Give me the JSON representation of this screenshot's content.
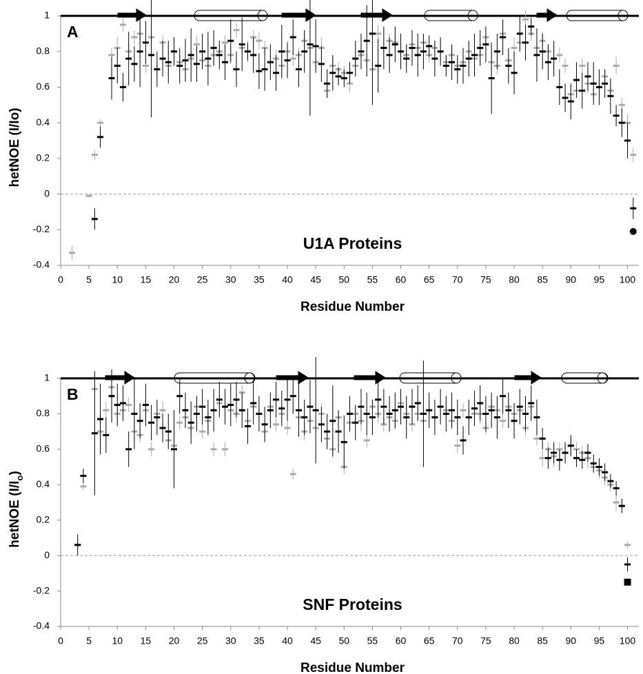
{
  "chart_data": [
    {
      "type": "scatter",
      "panel_label": "A",
      "annotation": "U1A Proteins",
      "xlabel": "Residue Number",
      "ylabel": "hetNOE  (I/Io)",
      "xlim": [
        0,
        102
      ],
      "ylim": [
        -0.4,
        1
      ],
      "xticks": [
        0,
        5,
        10,
        15,
        20,
        25,
        30,
        35,
        40,
        45,
        50,
        55,
        60,
        65,
        70,
        75,
        80,
        85,
        90,
        95,
        100
      ],
      "yticks": [
        -0.4,
        -0.2,
        0,
        0.2,
        0.4,
        0.6,
        0.8,
        1
      ],
      "zero_line": true,
      "x": [
        2,
        3,
        4,
        5,
        6,
        7,
        8,
        9,
        10,
        11,
        12,
        13,
        14,
        15,
        16,
        17,
        18,
        19,
        20,
        21,
        22,
        23,
        24,
        25,
        26,
        27,
        28,
        29,
        30,
        31,
        32,
        33,
        34,
        35,
        36,
        37,
        38,
        39,
        40,
        41,
        42,
        43,
        44,
        45,
        46,
        47,
        48,
        49,
        50,
        51,
        52,
        53,
        54,
        55,
        56,
        57,
        58,
        59,
        60,
        61,
        62,
        63,
        64,
        65,
        66,
        67,
        68,
        69,
        70,
        71,
        72,
        73,
        74,
        75,
        76,
        77,
        78,
        79,
        80,
        81,
        82,
        83,
        84,
        85,
        86,
        87,
        88,
        89,
        90,
        91,
        92,
        93,
        94,
        95,
        96,
        97,
        98,
        99,
        100,
        101
      ],
      "series": [
        {
          "color": "#aaaaaa",
          "values": [
            -0.33,
            null,
            null,
            -0.01,
            0.22,
            0.4,
            null,
            0.78,
            0.82,
            0.95,
            0.8,
            0.88,
            0.9,
            0.72,
            0.88,
            0.7,
            0.85,
            0.72,
            0.8,
            0.74,
            0.7,
            0.76,
            0.84,
            0.75,
            0.72,
            0.78,
            0.8,
            0.85,
            0.78,
            0.92,
            0.82,
            0.8,
            0.88,
            0.86,
            0.82,
            0.74,
            0.76,
            0.72,
            0.8,
            0.76,
            0.78,
            0.86,
            0.82,
            0.74,
            0.82,
            0.58,
            0.72,
            0.7,
            0.68,
            0.62,
            0.72,
            0.78,
            0.75,
            0.7,
            0.9,
            0.82,
            0.86,
            0.85,
            0.8,
            0.78,
            0.84,
            0.82,
            0.85,
            0.78,
            0.82,
            0.8,
            0.74,
            0.78,
            0.72,
            0.74,
            0.8,
            0.76,
            0.78,
            0.88,
            0.74,
            0.72,
            0.9,
            0.75,
            0.82,
            0.85,
            0.98,
            0.9,
            0.82,
            0.86,
            0.8,
            0.76,
            0.78,
            0.72,
            0.56,
            0.58,
            0.72,
            0.62,
            0.56,
            0.6,
            0.66,
            0.58,
            0.72,
            0.5,
            0.4,
            0.22
          ],
          "errors": [
            0.04,
            null,
            null,
            0.01,
            0.03,
            0.02,
            null,
            0.04,
            0.06,
            0.04,
            0.05,
            0.04,
            0.06,
            0.04,
            0.05,
            0.04,
            0.04,
            0.05,
            0.04,
            0.04,
            0.06,
            0.04,
            0.05,
            0.04,
            0.04,
            0.06,
            0.04,
            0.04,
            0.05,
            0.04,
            0.04,
            0.06,
            0.04,
            0.05,
            0.04,
            0.04,
            0.05,
            0.04,
            0.06,
            0.04,
            0.04,
            0.05,
            0.04,
            0.04,
            0.06,
            0.04,
            0.05,
            0.04,
            0.04,
            0.05,
            0.04,
            0.06,
            0.04,
            0.04,
            0.05,
            0.04,
            0.04,
            0.05,
            0.04,
            0.06,
            0.04,
            0.04,
            0.05,
            0.04,
            0.04,
            0.06,
            0.04,
            0.05,
            0.04,
            0.04,
            0.05,
            0.04,
            0.06,
            0.04,
            0.04,
            0.05,
            0.04,
            0.04,
            0.06,
            0.04,
            0.05,
            0.04,
            0.04,
            0.05,
            0.04,
            0.06,
            0.04,
            0.04,
            0.05,
            0.04,
            0.04,
            0.06,
            0.04,
            0.05,
            0.04,
            0.04,
            0.05,
            0.04,
            0.05,
            0.04
          ]
        },
        {
          "color": "#000000",
          "values": [
            null,
            null,
            null,
            null,
            -0.14,
            0.32,
            null,
            0.65,
            0.72,
            0.6,
            0.76,
            0.73,
            0.8,
            0.85,
            0.78,
            0.7,
            0.76,
            0.74,
            0.8,
            0.72,
            0.75,
            0.78,
            0.73,
            0.8,
            0.76,
            0.82,
            0.78,
            0.74,
            0.86,
            0.7,
            0.84,
            0.8,
            0.78,
            0.69,
            0.7,
            0.74,
            0.68,
            0.8,
            0.75,
            0.88,
            0.7,
            0.8,
            0.84,
            0.83,
            0.73,
            0.62,
            0.68,
            0.66,
            0.65,
            0.68,
            0.76,
            0.8,
            0.86,
            0.9,
            0.72,
            0.82,
            0.78,
            0.84,
            0.8,
            0.76,
            0.82,
            0.78,
            0.8,
            0.83,
            0.76,
            0.8,
            0.72,
            0.74,
            0.7,
            0.72,
            0.76,
            0.78,
            0.82,
            0.84,
            0.65,
            0.8,
            0.88,
            0.72,
            0.68,
            0.9,
            0.85,
            0.94,
            0.78,
            0.8,
            0.74,
            0.76,
            0.6,
            0.54,
            0.52,
            0.64,
            0.58,
            0.66,
            0.62,
            0.6,
            0.62,
            0.55,
            0.44,
            0.4,
            0.3,
            -0.08
          ],
          "errors": [
            null,
            null,
            null,
            null,
            0.06,
            0.06,
            null,
            0.12,
            0.1,
            0.08,
            0.15,
            0.1,
            0.2,
            0.12,
            0.35,
            0.1,
            0.1,
            0.12,
            0.08,
            0.1,
            0.12,
            0.15,
            0.1,
            0.1,
            0.15,
            0.1,
            0.08,
            0.1,
            0.12,
            0.1,
            0.15,
            0.05,
            0.1,
            0.1,
            0.12,
            0.1,
            0.1,
            0.15,
            0.1,
            0.1,
            0.1,
            0.12,
            0.4,
            0.15,
            0.1,
            0.08,
            0.1,
            0.05,
            0.05,
            0.06,
            0.1,
            0.1,
            0.2,
            0.4,
            0.15,
            0.12,
            0.1,
            0.1,
            0.1,
            0.08,
            0.1,
            0.12,
            0.1,
            0.06,
            0.1,
            0.08,
            0.06,
            0.1,
            0.08,
            0.1,
            0.1,
            0.12,
            0.1,
            0.1,
            0.2,
            0.1,
            0.1,
            0.1,
            0.12,
            0.1,
            0.1,
            0.05,
            0.15,
            0.1,
            0.1,
            0.1,
            0.1,
            0.08,
            0.1,
            0.1,
            0.1,
            0.08,
            0.12,
            0.1,
            0.08,
            0.1,
            0.06,
            0.08,
            0.1,
            0.06
          ]
        },
        {
          "color": "#000000",
          "marker": "circle",
          "x": [
            101
          ],
          "values": [
            -0.21
          ]
        }
      ]
    },
    {
      "type": "scatter",
      "panel_label": "B",
      "annotation": "SNF Proteins",
      "xlabel": "Residue Number",
      "ylabel": "hetNOE  (I/I",
      "ylabel_subscript": "o",
      "xlim": [
        0,
        102
      ],
      "ylim": [
        -0.4,
        1
      ],
      "xticks": [
        0,
        5,
        10,
        15,
        20,
        25,
        30,
        35,
        40,
        45,
        50,
        55,
        60,
        65,
        70,
        75,
        80,
        85,
        90,
        95,
        100
      ],
      "yticks": [
        -0.4,
        -0.2,
        0,
        0.2,
        0.4,
        0.6,
        0.8,
        1
      ],
      "zero_line": true,
      "x": [
        3,
        4,
        5,
        6,
        7,
        8,
        9,
        10,
        11,
        12,
        13,
        14,
        15,
        16,
        17,
        18,
        19,
        20,
        21,
        22,
        23,
        24,
        25,
        26,
        27,
        28,
        29,
        30,
        31,
        32,
        33,
        34,
        35,
        36,
        37,
        38,
        39,
        40,
        41,
        42,
        43,
        44,
        45,
        46,
        47,
        48,
        49,
        50,
        51,
        52,
        53,
        54,
        55,
        56,
        57,
        58,
        59,
        60,
        61,
        62,
        63,
        64,
        65,
        66,
        67,
        68,
        69,
        70,
        71,
        72,
        73,
        74,
        75,
        76,
        77,
        78,
        79,
        80,
        81,
        82,
        83,
        84,
        85,
        86,
        87,
        88,
        89,
        90,
        91,
        92,
        93,
        94,
        95,
        96,
        97,
        98,
        99,
        100
      ],
      "series": [
        {
          "color": "#aaaaaa",
          "values": [
            0.06,
            0.39,
            null,
            0.94,
            0.7,
            0.82,
            0.95,
            0.8,
            0.82,
            0.85,
            0.7,
            0.68,
            0.82,
            0.6,
            0.8,
            0.82,
            0.65,
            0.62,
            0.75,
            0.78,
            0.72,
            0.84,
            0.7,
            0.76,
            0.6,
            0.86,
            0.6,
            0.82,
            0.8,
            0.92,
            0.76,
            0.84,
            0.8,
            0.7,
            0.84,
            0.74,
            0.8,
            0.72,
            0.46,
            0.78,
            0.7,
            0.76,
            0.72,
            0.8,
            0.66,
            0.6,
            0.78,
            0.5,
            0.75,
            0.8,
            0.76,
            0.65,
            0.84,
            0.8,
            0.74,
            0.78,
            0.76,
            0.86,
            0.8,
            0.74,
            0.8,
            0.76,
            0.82,
            0.78,
            0.84,
            0.82,
            0.76,
            0.62,
            0.82,
            0.78,
            0.8,
            0.8,
            0.72,
            0.84,
            0.82,
            0.76,
            0.84,
            0.8,
            0.82,
            0.72,
            0.84,
            0.66,
            0.55,
            0.6,
            0.56,
            0.6,
            0.58,
            0.62,
            0.6,
            0.58,
            0.55,
            0.5,
            0.48,
            0.44,
            0.4,
            0.3,
            0.28,
            0.06
          ],
          "errors": [
            0.02,
            0.02,
            null,
            0.02,
            0.1,
            0.05,
            0.04,
            0.05,
            0.04,
            0.04,
            0.06,
            0.04,
            0.05,
            0.04,
            0.04,
            0.05,
            0.04,
            0.06,
            0.04,
            0.04,
            0.05,
            0.04,
            0.04,
            0.06,
            0.04,
            0.05,
            0.04,
            0.04,
            0.05,
            0.04,
            0.06,
            0.04,
            0.04,
            0.05,
            0.04,
            0.04,
            0.05,
            0.04,
            0.03,
            0.04,
            0.05,
            0.04,
            0.04,
            0.06,
            0.04,
            0.05,
            0.04,
            0.04,
            0.05,
            0.04,
            0.06,
            0.04,
            0.04,
            0.05,
            0.04,
            0.04,
            0.05,
            0.04,
            0.06,
            0.04,
            0.04,
            0.05,
            0.04,
            0.04,
            0.06,
            0.04,
            0.05,
            0.04,
            0.04,
            0.05,
            0.04,
            0.06,
            0.04,
            0.04,
            0.05,
            0.04,
            0.04,
            0.06,
            0.04,
            0.05,
            0.04,
            0.04,
            0.05,
            0.04,
            0.06,
            0.04,
            0.04,
            0.05,
            0.04,
            0.04,
            0.06,
            0.04,
            0.05,
            0.04,
            0.04,
            0.05,
            0.04,
            0.02
          ]
        },
        {
          "color": "#000000",
          "values": [
            0.06,
            0.45,
            null,
            0.69,
            0.77,
            0.68,
            0.9,
            0.85,
            0.86,
            0.6,
            0.8,
            0.76,
            0.85,
            0.75,
            0.78,
            0.72,
            0.7,
            0.6,
            0.9,
            0.82,
            0.75,
            0.8,
            0.84,
            0.78,
            0.82,
            0.88,
            0.84,
            0.85,
            0.88,
            0.82,
            0.73,
            0.86,
            0.8,
            0.74,
            0.82,
            0.88,
            0.83,
            0.88,
            0.9,
            0.82,
            0.78,
            0.84,
            0.82,
            0.74,
            0.7,
            0.76,
            0.7,
            0.64,
            0.8,
            0.75,
            0.84,
            0.8,
            0.78,
            0.88,
            0.84,
            0.8,
            0.82,
            0.84,
            0.78,
            0.84,
            0.86,
            0.8,
            0.82,
            0.78,
            0.84,
            0.8,
            0.82,
            0.78,
            0.65,
            0.78,
            0.83,
            0.86,
            0.8,
            0.82,
            0.78,
            0.9,
            0.82,
            0.76,
            0.84,
            0.8,
            0.86,
            0.78,
            0.66,
            0.55,
            0.58,
            0.54,
            0.58,
            0.62,
            0.55,
            0.54,
            0.58,
            0.52,
            0.5,
            0.47,
            0.42,
            0.38,
            0.28,
            -0.05
          ],
          "errors": [
            0.06,
            0.04,
            null,
            0.35,
            0.2,
            0.1,
            0.15,
            0.12,
            0.1,
            0.1,
            0.2,
            0.1,
            0.12,
            0.1,
            0.1,
            0.08,
            0.1,
            0.22,
            0.1,
            0.1,
            0.12,
            0.1,
            0.1,
            0.1,
            0.12,
            0.1,
            0.1,
            0.12,
            0.1,
            0.1,
            0.1,
            0.12,
            0.1,
            0.1,
            0.1,
            0.1,
            0.1,
            0.12,
            0.1,
            0.15,
            0.1,
            0.15,
            0.3,
            0.1,
            0.1,
            0.2,
            0.12,
            0.15,
            0.1,
            0.1,
            0.1,
            0.12,
            0.1,
            0.1,
            0.1,
            0.1,
            0.1,
            0.1,
            0.12,
            0.1,
            0.1,
            0.3,
            0.1,
            0.1,
            0.1,
            0.1,
            0.1,
            0.1,
            0.08,
            0.1,
            0.1,
            0.1,
            0.1,
            0.1,
            0.12,
            0.1,
            0.1,
            0.1,
            0.1,
            0.1,
            0.1,
            0.1,
            0.06,
            0.06,
            0.06,
            0.06,
            0.06,
            0.06,
            0.05,
            0.05,
            0.05,
            0.05,
            0.05,
            0.05,
            0.04,
            0.04,
            0.04,
            0.04
          ]
        },
        {
          "color": "#000000",
          "marker": "square",
          "x": [
            100
          ],
          "values": [
            -0.15
          ]
        }
      ]
    }
  ]
}
